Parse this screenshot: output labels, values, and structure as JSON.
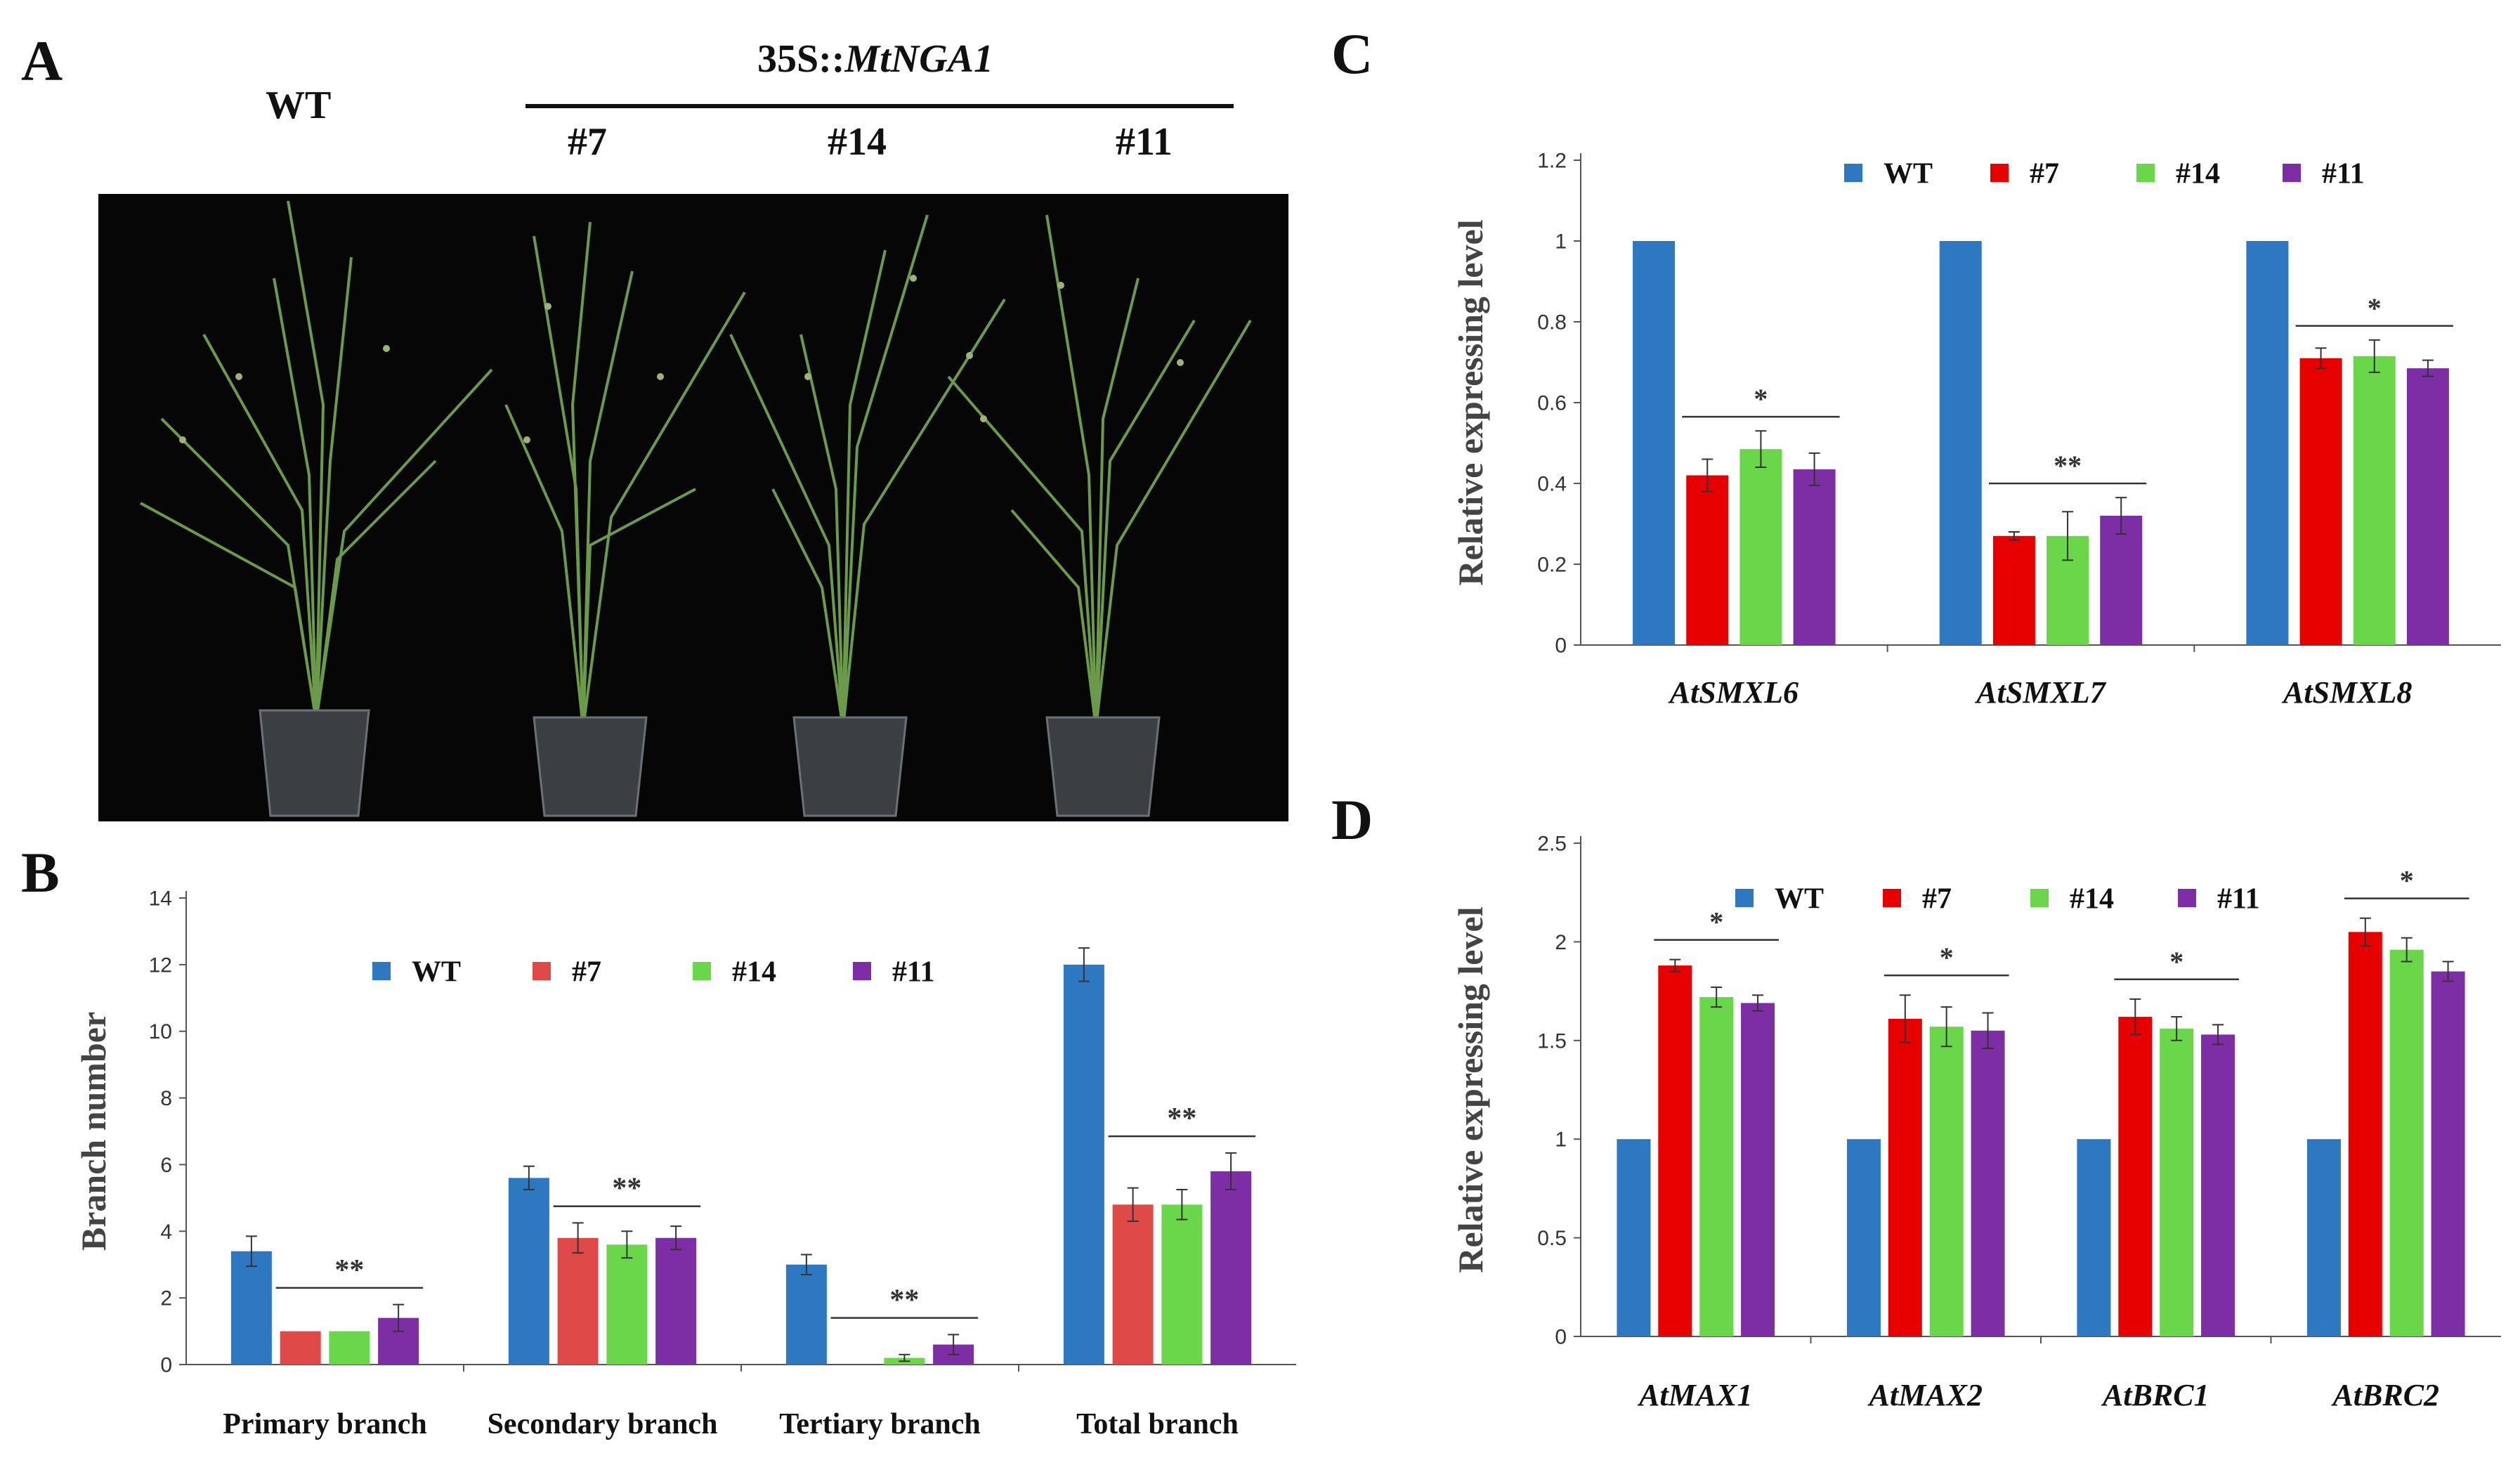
{
  "panel_a": {
    "letter": "A",
    "wt_label": "WT",
    "construct_prefix": "35S::",
    "construct_gene": "MtNGA1",
    "lines": [
      "#7",
      "#14",
      "#11"
    ]
  },
  "colors": {
    "WT": "#2e78c2",
    "#7_B": "#df4a48",
    "#7": "#e60000",
    "#14": "#6ad74a",
    "#11": "#7d2ea5"
  },
  "chart_data": [
    {
      "id": "B",
      "letter": "B",
      "type": "bar",
      "categories": [
        "Primary branch",
        "Secondary branch",
        "Tertiary branch",
        "Total branch"
      ],
      "italic_categories": false,
      "ylabel": "Branch number",
      "ylim": [
        0,
        14
      ],
      "yticks": [
        "0",
        "2",
        "4",
        "6",
        "8",
        "10",
        "12",
        "14"
      ],
      "legend_position": "top-left",
      "series": [
        {
          "name": "WT",
          "values": [
            3.4,
            5.6,
            3.0,
            12.0
          ],
          "errors": [
            0.45,
            0.35,
            0.3,
            0.5
          ]
        },
        {
          "name": "#7",
          "values": [
            1.0,
            3.8,
            0.0,
            4.8
          ],
          "errors": [
            0.0,
            0.45,
            0.0,
            0.5
          ]
        },
        {
          "name": "#14",
          "values": [
            1.0,
            3.6,
            0.2,
            4.8
          ],
          "errors": [
            0.0,
            0.4,
            0.1,
            0.45
          ]
        },
        {
          "name": "#11",
          "values": [
            1.4,
            3.8,
            0.6,
            5.8
          ],
          "errors": [
            0.4,
            0.35,
            0.3,
            0.55
          ]
        }
      ],
      "annotations": [
        "**",
        "**",
        "**",
        "**"
      ]
    },
    {
      "id": "C",
      "letter": "C",
      "type": "bar",
      "categories": [
        "AtSMXL6",
        "AtSMXL7",
        "AtSMXL8"
      ],
      "italic_categories": true,
      "ylabel": "Relative expressing level",
      "ylim": [
        0,
        1.2
      ],
      "yticks": [
        "0",
        "0.2",
        "0.4",
        "0.6",
        "0.8",
        "1",
        "1.2"
      ],
      "legend_position": "top-center",
      "series": [
        {
          "name": "WT",
          "values": [
            1.0,
            1.0,
            1.0
          ],
          "errors": [
            0.0,
            0.0,
            0.0
          ]
        },
        {
          "name": "#7",
          "values": [
            0.42,
            0.27,
            0.71
          ],
          "errors": [
            0.04,
            0.01,
            0.025
          ]
        },
        {
          "name": "#14",
          "values": [
            0.485,
            0.27,
            0.715
          ],
          "errors": [
            0.045,
            0.06,
            0.04
          ]
        },
        {
          "name": "#11",
          "values": [
            0.435,
            0.32,
            0.685
          ],
          "errors": [
            0.04,
            0.045,
            0.02
          ]
        }
      ],
      "annotations": [
        "*",
        "**",
        "*"
      ]
    },
    {
      "id": "D",
      "letter": "D",
      "type": "bar",
      "categories": [
        "AtMAX1",
        "AtMAX2",
        "AtBRC1",
        "AtBRC2"
      ],
      "italic_categories": true,
      "ylabel": "Relative expressing level",
      "ylim": [
        0,
        2.5
      ],
      "yticks": [
        "0",
        "0.5",
        "1",
        "1.5",
        "2",
        "2.5"
      ],
      "legend_position": "top-center",
      "series": [
        {
          "name": "WT",
          "values": [
            1.0,
            1.0,
            1.0,
            1.0
          ],
          "errors": [
            0.0,
            0.0,
            0.0,
            0.0
          ]
        },
        {
          "name": "#7",
          "values": [
            1.88,
            1.61,
            1.62,
            2.05
          ],
          "errors": [
            0.03,
            0.12,
            0.09,
            0.07
          ]
        },
        {
          "name": "#14",
          "values": [
            1.72,
            1.57,
            1.56,
            1.96
          ],
          "errors": [
            0.05,
            0.1,
            0.06,
            0.06
          ]
        },
        {
          "name": "#11",
          "values": [
            1.69,
            1.55,
            1.53,
            1.85
          ],
          "errors": [
            0.04,
            0.09,
            0.05,
            0.05
          ]
        }
      ],
      "annotations": [
        "*",
        "*",
        "*",
        "*"
      ]
    }
  ]
}
